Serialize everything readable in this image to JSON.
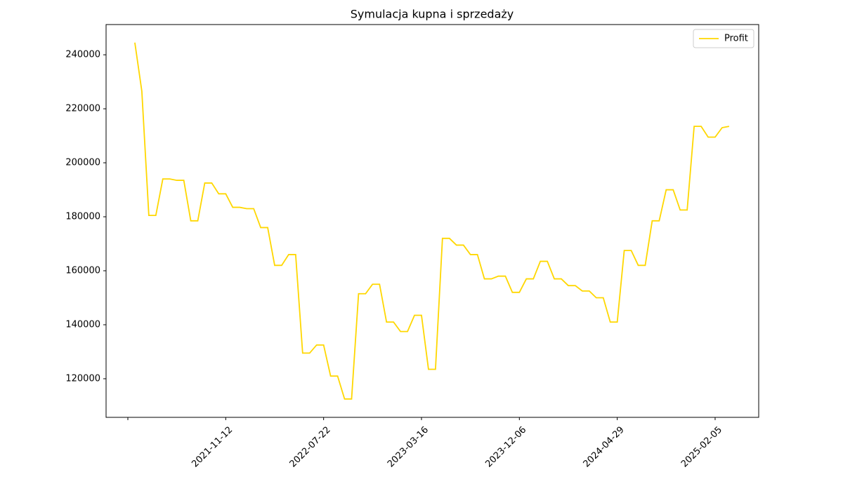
{
  "chart_data": {
    "type": "line",
    "title": "Symulacja kupna i sprzedaży",
    "categories": [
      null,
      null,
      null,
      null,
      null,
      null,
      null,
      null,
      null,
      null,
      null,
      null,
      null,
      null,
      "2021-11-12",
      null,
      null,
      null,
      null,
      null,
      null,
      null,
      null,
      null,
      null,
      null,
      null,
      null,
      "2022-07-22",
      null,
      null,
      null,
      null,
      null,
      null,
      null,
      null,
      null,
      null,
      null,
      null,
      null,
      "2023-03-16",
      null,
      null,
      null,
      null,
      null,
      null,
      null,
      null,
      null,
      null,
      null,
      null,
      null,
      "2023-12-06",
      null,
      null,
      null,
      null,
      null,
      null,
      null,
      null,
      null,
      null,
      null,
      null,
      null,
      "2024-04-29",
      null,
      null,
      null,
      null,
      null,
      null,
      null,
      null,
      null,
      null,
      null,
      null,
      null,
      "2025-02-05",
      null,
      null
    ],
    "xticks": [
      0,
      14,
      28,
      42,
      56,
      70,
      84
    ],
    "series": [
      {
        "name": "Profit",
        "color": "#ffd700",
        "values": [
          null,
          244500,
          226500,
          180500,
          180500,
          194000,
          194000,
          193500,
          193500,
          178500,
          178500,
          192500,
          192500,
          188500,
          188500,
          183500,
          183500,
          183000,
          183000,
          176000,
          176000,
          162000,
          162000,
          166000,
          166000,
          129500,
          129500,
          132500,
          132500,
          121000,
          121000,
          112500,
          112500,
          151500,
          151500,
          155000,
          155000,
          141000,
          141000,
          137500,
          137500,
          143500,
          143500,
          123500,
          123500,
          172000,
          172000,
          169500,
          169500,
          166000,
          166000,
          157000,
          157000,
          158000,
          158000,
          152000,
          152000,
          157000,
          157000,
          163500,
          163500,
          157000,
          157000,
          154500,
          154500,
          152500,
          152500,
          150000,
          150000,
          141000,
          141000,
          167500,
          167500,
          162000,
          162000,
          178500,
          178500,
          190000,
          190000,
          182500,
          182500,
          213500,
          213500,
          209500,
          209500,
          213000,
          213500
        ]
      }
    ],
    "ylim": [
      105700,
      251200
    ],
    "yticks": [
      120000,
      140000,
      160000,
      180000,
      200000,
      220000,
      240000
    ],
    "legend": "upper right"
  }
}
